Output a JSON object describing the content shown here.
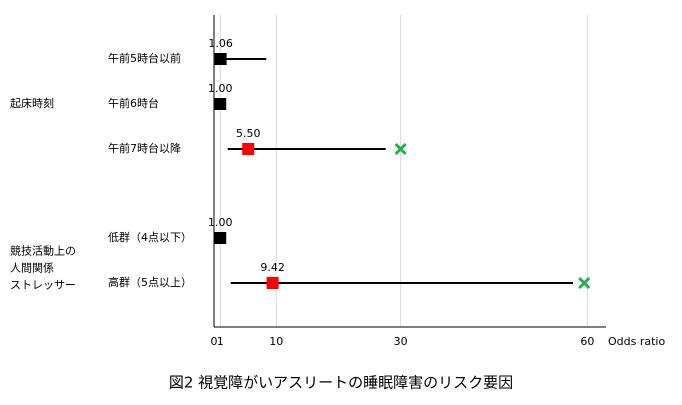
{
  "chart_data": {
    "type": "forest",
    "caption": "図2 視覚障がいアスリートの睡眠障害のリスク要因",
    "x_label": "Odds ratio",
    "xlim": [
      0,
      63
    ],
    "xticks": [
      0,
      1,
      10,
      30,
      60
    ],
    "grid": true,
    "groups": [
      [
        "起床時刻"
      ],
      [
        "競技活動上の",
        "人間関係",
        "ストレッサー"
      ]
    ],
    "rows": [
      {
        "label": "午前5時台以前",
        "group": 0,
        "value": 1.06,
        "value_label": "1.06",
        "ci": [
          0.2,
          8.4
        ],
        "color": "#000000",
        "flag": null,
        "flag_color": null
      },
      {
        "label": "午前6時台",
        "group": 0,
        "value": 1.0,
        "value_label": "1.00",
        "ci": null,
        "color": "#000000",
        "flag": null,
        "flag_color": null
      },
      {
        "label": "午前7時台以降",
        "group": 0,
        "value": 5.5,
        "value_label": "5.50",
        "ci": [
          2.2,
          27.6
        ],
        "color": "#ff0000",
        "flag": 30,
        "flag_color": "#22b04c"
      },
      {
        "label": "低群（4点以下）",
        "group": 1,
        "value": 1.0,
        "value_label": "1.00",
        "ci": null,
        "color": "#000000",
        "flag": null,
        "flag_color": null
      },
      {
        "label": "高群（5点以上）",
        "group": 1,
        "value": 9.42,
        "value_label": "9.42",
        "ci": [
          2.7,
          57.7
        ],
        "color": "#ff0000",
        "flag": 59.5,
        "flag_color": "#22b04c"
      }
    ]
  }
}
